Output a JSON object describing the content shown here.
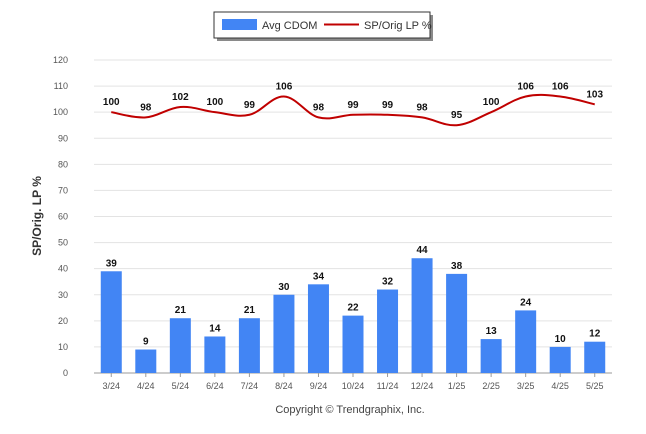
{
  "chart_data": {
    "type": "bar",
    "categories": [
      "3/24",
      "4/24",
      "5/24",
      "6/24",
      "7/24",
      "8/24",
      "9/24",
      "10/24",
      "11/24",
      "12/24",
      "1/25",
      "2/25",
      "3/25",
      "4/25",
      "5/25"
    ],
    "series": [
      {
        "name": "Avg CDOM",
        "type": "bar",
        "color": "#4285f4",
        "values": [
          39,
          9,
          21,
          14,
          21,
          30,
          34,
          22,
          32,
          44,
          38,
          13,
          24,
          10,
          12
        ]
      },
      {
        "name": "SP/Orig LP %",
        "type": "line",
        "color": "#c00000",
        "values": [
          100,
          98,
          102,
          100,
          99,
          106,
          98,
          99,
          99,
          98,
          95,
          100,
          106,
          106,
          103
        ]
      }
    ],
    "ylabel": "SP/Orig. LP %",
    "ylim": [
      0,
      120
    ],
    "yticks": [
      0,
      10,
      20,
      30,
      40,
      50,
      60,
      70,
      80,
      90,
      100,
      110,
      120
    ],
    "grid": true,
    "legend_position": "top-center"
  },
  "footer": {
    "copyright": "Copyright © Trendgraphix, Inc."
  }
}
